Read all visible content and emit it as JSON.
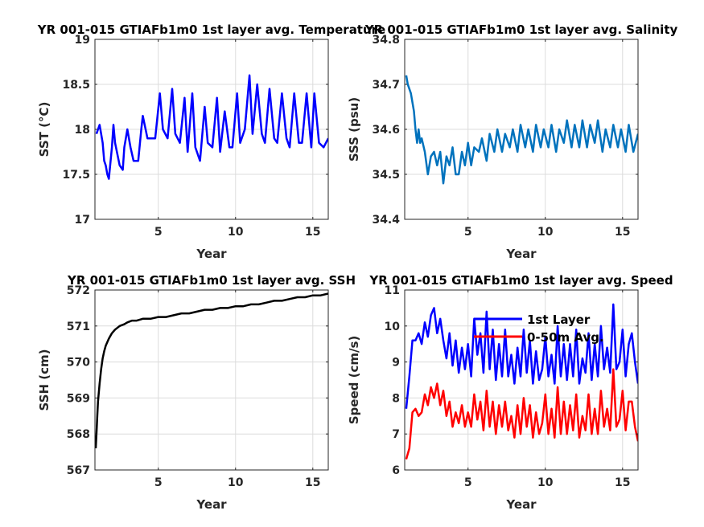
{
  "chart_data": [
    {
      "type": "line",
      "title": "YR 001-015 GTIAFb1m0 1st layer avg. Temperature",
      "xlabel": "Year",
      "ylabel": "SST (°C)",
      "xlim": [
        0.9,
        16
      ],
      "ylim": [
        17,
        19
      ],
      "xticks": [
        5,
        10,
        15
      ],
      "yticks": [
        17,
        17.5,
        18,
        18.5,
        19
      ],
      "grid": true,
      "series": [
        {
          "color": "#0000ff",
          "x": [
            1.0,
            1.2,
            1.4,
            1.5,
            1.6,
            1.7,
            1.8,
            2.0,
            2.1,
            2.2,
            2.5,
            2.7,
            2.8,
            3.0,
            3.2,
            3.4,
            3.7,
            3.9,
            4.0,
            4.3,
            4.6,
            4.8,
            5.1,
            5.3,
            5.6,
            5.9,
            6.1,
            6.4,
            6.7,
            6.9,
            7.2,
            7.4,
            7.7,
            8.0,
            8.2,
            8.5,
            8.8,
            9.0,
            9.3,
            9.6,
            9.8,
            10.1,
            10.3,
            10.6,
            10.9,
            11.1,
            11.4,
            11.7,
            11.9,
            12.2,
            12.5,
            12.7,
            13.0,
            13.3,
            13.5,
            13.8,
            14.1,
            14.3,
            14.6,
            14.9,
            15.1,
            15.4,
            15.7,
            16.0
          ],
          "y": [
            17.95,
            18.05,
            17.85,
            17.65,
            17.6,
            17.5,
            17.45,
            17.8,
            18.05,
            17.85,
            17.6,
            17.55,
            17.8,
            18.0,
            17.8,
            17.65,
            17.65,
            18.0,
            18.15,
            17.9,
            17.9,
            17.9,
            18.4,
            18.0,
            17.9,
            18.45,
            17.95,
            17.85,
            18.35,
            17.75,
            18.4,
            17.8,
            17.65,
            18.25,
            17.85,
            17.8,
            18.35,
            17.75,
            18.2,
            17.8,
            17.8,
            18.4,
            17.85,
            18.0,
            18.6,
            17.95,
            18.5,
            17.95,
            17.85,
            18.45,
            17.9,
            17.85,
            18.4,
            17.9,
            17.8,
            18.4,
            17.85,
            17.85,
            18.4,
            17.8,
            18.4,
            17.85,
            17.8,
            17.9
          ]
        }
      ]
    },
    {
      "type": "line",
      "title": "YR 001-015 GTIAFb1m0 1st layer avg. Salinity",
      "xlabel": "Year",
      "ylabel": "SSS (psu)",
      "xlim": [
        0.9,
        16
      ],
      "ylim": [
        34.4,
        34.8
      ],
      "xticks": [
        5,
        10,
        15
      ],
      "yticks": [
        34.4,
        34.5,
        34.6,
        34.7,
        34.8
      ],
      "grid": true,
      "series": [
        {
          "color": "#0072bd",
          "x": [
            1.0,
            1.1,
            1.3,
            1.5,
            1.6,
            1.7,
            1.8,
            1.9,
            2.0,
            2.2,
            2.4,
            2.6,
            2.8,
            3.0,
            3.2,
            3.4,
            3.6,
            3.8,
            4.0,
            4.2,
            4.4,
            4.6,
            4.8,
            5.0,
            5.2,
            5.4,
            5.7,
            5.9,
            6.2,
            6.4,
            6.7,
            6.9,
            7.2,
            7.4,
            7.7,
            7.9,
            8.2,
            8.4,
            8.7,
            8.9,
            9.2,
            9.4,
            9.7,
            9.9,
            10.2,
            10.4,
            10.7,
            10.9,
            11.2,
            11.4,
            11.7,
            11.9,
            12.2,
            12.4,
            12.7,
            12.9,
            13.2,
            13.4,
            13.7,
            13.9,
            14.2,
            14.4,
            14.7,
            14.9,
            15.2,
            15.4,
            15.7,
            16.0
          ],
          "y": [
            34.72,
            34.7,
            34.68,
            34.64,
            34.6,
            34.57,
            34.6,
            34.57,
            34.58,
            34.55,
            34.5,
            34.54,
            34.55,
            34.52,
            34.55,
            34.48,
            34.54,
            34.52,
            34.56,
            34.5,
            34.5,
            34.55,
            34.52,
            34.57,
            34.52,
            34.56,
            34.55,
            34.58,
            34.53,
            34.59,
            34.55,
            34.6,
            34.55,
            34.59,
            34.56,
            34.6,
            34.55,
            34.61,
            34.56,
            34.6,
            34.55,
            34.61,
            34.56,
            34.6,
            34.56,
            34.61,
            34.55,
            34.6,
            34.57,
            34.62,
            34.56,
            34.61,
            34.56,
            34.62,
            34.56,
            34.61,
            34.57,
            34.62,
            34.55,
            34.6,
            34.56,
            34.61,
            34.56,
            34.6,
            34.55,
            34.61,
            34.55,
            34.59
          ]
        }
      ]
    },
    {
      "type": "line",
      "title": "YR 001-015 GTIAFb1m0 1st layer avg. SSH",
      "xlabel": "Year",
      "ylabel": "SSH (cm)",
      "xlim": [
        0.9,
        16
      ],
      "ylim": [
        567,
        572
      ],
      "xticks": [
        5,
        10,
        15
      ],
      "yticks": [
        567,
        568,
        569,
        570,
        571,
        572
      ],
      "grid": true,
      "series": [
        {
          "color": "#000000",
          "x": [
            0.95,
            1.0,
            1.05,
            1.1,
            1.2,
            1.3,
            1.4,
            1.5,
            1.6,
            1.8,
            2.0,
            2.2,
            2.5,
            2.8,
            3.0,
            3.3,
            3.6,
            4.0,
            4.5,
            5.0,
            5.5,
            6.0,
            6.5,
            7.0,
            7.5,
            8.0,
            8.5,
            9.0,
            9.5,
            10.0,
            10.5,
            11.0,
            11.5,
            12.0,
            12.5,
            13.0,
            13.5,
            14.0,
            14.5,
            15.0,
            15.5,
            16.0
          ],
          "y": [
            567.6,
            568.0,
            568.5,
            568.9,
            569.4,
            569.8,
            570.1,
            570.3,
            570.45,
            570.65,
            570.8,
            570.9,
            571.0,
            571.05,
            571.1,
            571.15,
            571.15,
            571.2,
            571.2,
            571.25,
            571.25,
            571.3,
            571.35,
            571.35,
            571.4,
            571.45,
            571.45,
            571.5,
            571.5,
            571.55,
            571.55,
            571.6,
            571.6,
            571.65,
            571.7,
            571.7,
            571.75,
            571.8,
            571.8,
            571.85,
            571.85,
            571.9
          ]
        }
      ]
    },
    {
      "type": "line",
      "title": "YR 001-015 GTIAFb1m0 1st layer avg. Speed",
      "xlabel": "Year",
      "ylabel": "Speed (cm/s)",
      "xlim": [
        0.9,
        16
      ],
      "ylim": [
        6,
        11
      ],
      "xticks": [
        5,
        10,
        15
      ],
      "yticks": [
        6,
        7,
        8,
        9,
        10,
        11
      ],
      "grid": true,
      "legend": "top-center",
      "series": [
        {
          "name": "1st Layer",
          "color": "#0000ff",
          "x": [
            1.0,
            1.2,
            1.4,
            1.6,
            1.8,
            2.0,
            2.2,
            2.4,
            2.6,
            2.8,
            3.0,
            3.2,
            3.4,
            3.6,
            3.8,
            4.0,
            4.2,
            4.4,
            4.6,
            4.8,
            5.0,
            5.2,
            5.4,
            5.6,
            5.8,
            6.0,
            6.2,
            6.4,
            6.6,
            6.8,
            7.0,
            7.2,
            7.4,
            7.6,
            7.8,
            8.0,
            8.2,
            8.4,
            8.6,
            8.8,
            9.0,
            9.2,
            9.4,
            9.6,
            9.8,
            10.0,
            10.2,
            10.4,
            10.6,
            10.8,
            11.0,
            11.2,
            11.4,
            11.6,
            11.8,
            12.0,
            12.2,
            12.4,
            12.6,
            12.8,
            13.0,
            13.2,
            13.4,
            13.6,
            13.8,
            14.0,
            14.2,
            14.4,
            14.6,
            14.8,
            15.0,
            15.2,
            15.4,
            15.6,
            15.8,
            16.0
          ],
          "y": [
            7.7,
            8.6,
            9.6,
            9.6,
            9.8,
            9.5,
            10.1,
            9.7,
            10.3,
            10.5,
            9.8,
            10.2,
            9.6,
            9.1,
            9.8,
            8.9,
            9.6,
            8.7,
            9.4,
            8.8,
            9.5,
            8.6,
            10.2,
            9.2,
            9.8,
            8.7,
            10.4,
            8.8,
            9.9,
            8.5,
            9.5,
            8.6,
            9.9,
            8.6,
            9.2,
            8.4,
            9.4,
            8.6,
            9.9,
            8.7,
            9.6,
            8.4,
            9.3,
            8.5,
            8.8,
            9.7,
            8.6,
            9.2,
            8.4,
            10.0,
            8.6,
            9.5,
            8.5,
            9.5,
            8.6,
            9.9,
            8.4,
            9.1,
            8.7,
            9.8,
            8.5,
            9.5,
            8.6,
            10.0,
            8.8,
            9.4,
            8.7,
            10.6,
            8.8,
            9.0,
            9.9,
            8.6,
            9.5,
            9.8,
            9.0,
            8.4
          ]
        },
        {
          "name": "0-50m Avg.",
          "color": "#ff0000",
          "x": [
            1.0,
            1.2,
            1.4,
            1.6,
            1.8,
            2.0,
            2.2,
            2.4,
            2.6,
            2.8,
            3.0,
            3.2,
            3.4,
            3.6,
            3.8,
            4.0,
            4.2,
            4.4,
            4.6,
            4.8,
            5.0,
            5.2,
            5.4,
            5.6,
            5.8,
            6.0,
            6.2,
            6.4,
            6.6,
            6.8,
            7.0,
            7.2,
            7.4,
            7.6,
            7.8,
            8.0,
            8.2,
            8.4,
            8.6,
            8.8,
            9.0,
            9.2,
            9.4,
            9.6,
            9.8,
            10.0,
            10.2,
            10.4,
            10.6,
            10.8,
            11.0,
            11.2,
            11.4,
            11.6,
            11.8,
            12.0,
            12.2,
            12.4,
            12.6,
            12.8,
            13.0,
            13.2,
            13.4,
            13.6,
            13.8,
            14.0,
            14.2,
            14.4,
            14.6,
            14.8,
            15.0,
            15.2,
            15.4,
            15.6,
            15.8,
            16.0
          ],
          "y": [
            6.3,
            6.6,
            7.6,
            7.7,
            7.5,
            7.6,
            8.1,
            7.8,
            8.3,
            8.0,
            8.4,
            7.8,
            8.2,
            7.5,
            7.9,
            7.2,
            7.6,
            7.3,
            7.8,
            7.2,
            7.6,
            7.2,
            8.1,
            7.4,
            7.9,
            7.1,
            8.2,
            7.2,
            7.9,
            7.0,
            7.8,
            7.2,
            7.9,
            7.1,
            7.5,
            6.9,
            7.8,
            7.0,
            8.0,
            7.2,
            7.8,
            6.9,
            7.6,
            7.0,
            7.3,
            8.1,
            7.0,
            7.7,
            6.9,
            8.3,
            7.0,
            7.9,
            7.0,
            7.8,
            7.1,
            8.1,
            6.9,
            7.5,
            7.1,
            8.1,
            7.0,
            7.7,
            7.0,
            8.2,
            7.2,
            7.7,
            7.1,
            8.8,
            7.2,
            7.4,
            8.2,
            7.1,
            7.9,
            7.9,
            7.2,
            6.8
          ]
        }
      ]
    }
  ]
}
